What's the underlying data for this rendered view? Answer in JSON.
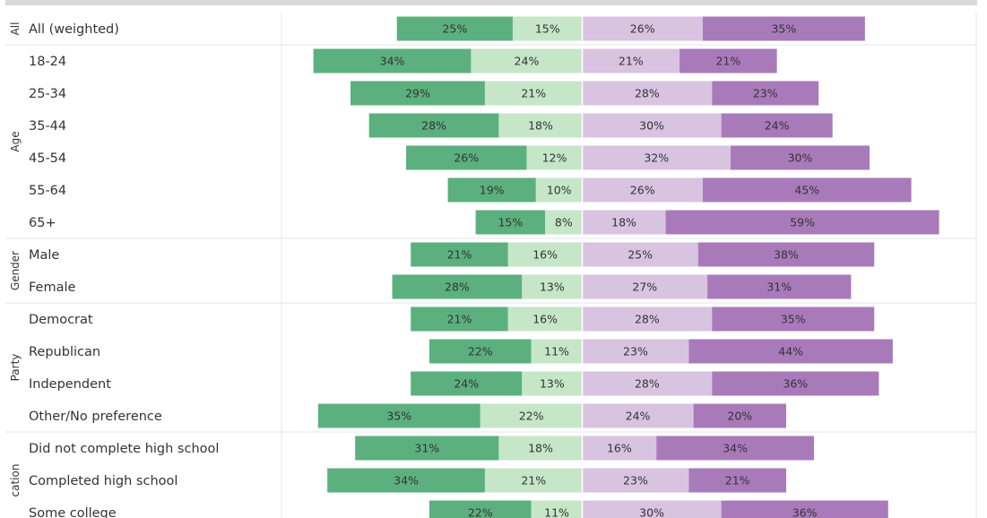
{
  "chart_data": {
    "type": "bar",
    "orientation": "horizontal",
    "stacked": "diverging",
    "colors": {
      "strong_left": "#5bb07e",
      "mild_left": "#c6e6c8",
      "mild_right": "#d8c3e1",
      "strong_right": "#a97aba"
    },
    "groups": [
      {
        "name": "All",
        "rows": [
          {
            "label": "All (weighted)",
            "values": [
              25,
              15,
              26,
              35
            ],
            "labels": [
              "25%",
              "15%",
              "26%",
              "35%"
            ]
          }
        ]
      },
      {
        "name": "Age",
        "rows": [
          {
            "label": "18-24",
            "values": [
              34,
              24,
              21,
              21
            ],
            "labels": [
              "34%",
              "24%",
              "21%",
              "21%"
            ]
          },
          {
            "label": "25-34",
            "values": [
              29,
              21,
              28,
              23
            ],
            "labels": [
              "29%",
              "21%",
              "28%",
              "23%"
            ]
          },
          {
            "label": "35-44",
            "values": [
              28,
              18,
              30,
              24
            ],
            "labels": [
              "28%",
              "18%",
              "30%",
              "24%"
            ]
          },
          {
            "label": "45-54",
            "values": [
              26,
              12,
              32,
              30
            ],
            "labels": [
              "26%",
              "12%",
              "32%",
              "30%"
            ]
          },
          {
            "label": "55-64",
            "values": [
              19,
              10,
              26,
              45
            ],
            "labels": [
              "19%",
              "10%",
              "26%",
              "45%"
            ]
          },
          {
            "label": "65+",
            "values": [
              15,
              8,
              18,
              59
            ],
            "labels": [
              "15%",
              "8%",
              "18%",
              "59%"
            ]
          }
        ]
      },
      {
        "name": "Gender",
        "rows": [
          {
            "label": "Male",
            "values": [
              21,
              16,
              25,
              38
            ],
            "labels": [
              "21%",
              "16%",
              "25%",
              "38%"
            ]
          },
          {
            "label": "Female",
            "values": [
              28,
              13,
              27,
              31
            ],
            "labels": [
              "28%",
              "13%",
              "27%",
              "31%"
            ]
          }
        ]
      },
      {
        "name": "Party",
        "rows": [
          {
            "label": "Democrat",
            "values": [
              21,
              16,
              28,
              35
            ],
            "labels": [
              "21%",
              "16%",
              "28%",
              "35%"
            ]
          },
          {
            "label": "Republican",
            "values": [
              22,
              11,
              23,
              44
            ],
            "labels": [
              "22%",
              "11%",
              "23%",
              "44%"
            ]
          },
          {
            "label": "Independent",
            "values": [
              24,
              13,
              28,
              36
            ],
            "labels": [
              "24%",
              "13%",
              "28%",
              "36%"
            ]
          },
          {
            "label": "Other/No preference",
            "values": [
              35,
              22,
              24,
              20
            ],
            "labels": [
              "35%",
              "22%",
              "24%",
              "20%"
            ]
          }
        ]
      },
      {
        "name": "cation",
        "rows": [
          {
            "label": "Did not complete high school",
            "values": [
              31,
              18,
              16,
              34
            ],
            "labels": [
              "31%",
              "18%",
              "16%",
              "34%"
            ]
          },
          {
            "label": "Completed high school",
            "values": [
              34,
              21,
              23,
              21
            ],
            "labels": [
              "34%",
              "21%",
              "23%",
              "21%"
            ]
          },
          {
            "label": "Some college",
            "values": [
              22,
              11,
              30,
              36
            ],
            "labels": [
              "22%",
              "11%",
              "30%",
              "36%"
            ]
          }
        ]
      }
    ]
  }
}
